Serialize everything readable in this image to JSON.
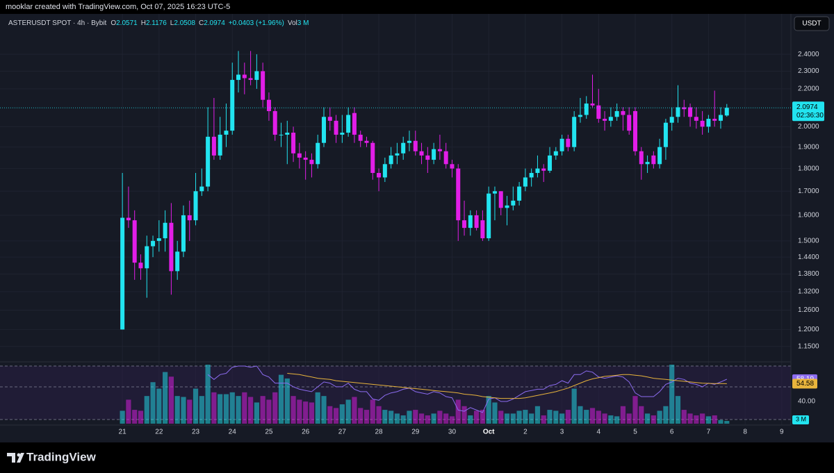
{
  "chart_data": {
    "type": "candlestick",
    "credit": "mooklar created with TradingView.com, Oct 07, 2025 16:23 UTC-5",
    "title": "ASTERUSDT SPOT · 4h · Bybit",
    "legend": {
      "open_prefix": "O",
      "high_prefix": "H",
      "low_prefix": "L",
      "close_prefix": "C",
      "change": "+0.0403 (+1.96%)",
      "volume_prefix": "Vol"
    },
    "currency": "USDT",
    "brand": "TradingView",
    "countdown": "02:36:30",
    "log_scale": true,
    "grid": true,
    "up_color": "#22e4f0",
    "down_color": "#e21ee8",
    "xlim": [
      -20.05,
      109.5
    ],
    "xticks": [
      {
        "value": 0,
        "label": "21"
      },
      {
        "value": 6,
        "label": "22"
      },
      {
        "value": 12,
        "label": "23"
      },
      {
        "value": 18,
        "label": "24"
      },
      {
        "value": 24,
        "label": "25"
      },
      {
        "value": 30,
        "label": "26"
      },
      {
        "value": 36,
        "label": "27"
      },
      {
        "value": 42,
        "label": "28"
      },
      {
        "value": 48,
        "label": "29"
      },
      {
        "value": 54,
        "label": "30"
      },
      {
        "value": 60,
        "label": "Oct"
      },
      {
        "value": 66,
        "label": "2"
      },
      {
        "value": 72,
        "label": "3"
      },
      {
        "value": 78,
        "label": "4"
      },
      {
        "value": 84,
        "label": "5"
      },
      {
        "value": 90,
        "label": "6"
      },
      {
        "value": 96,
        "label": "7"
      },
      {
        "value": 102,
        "label": "8"
      },
      {
        "value": 108,
        "label": "9"
      }
    ],
    "ylim": [
      1.108,
      2.53
    ],
    "yticks": [
      {
        "value": 2.4,
        "label": "2.4000"
      },
      {
        "value": 2.3,
        "label": "2.3000"
      },
      {
        "value": 2.2,
        "label": "2.2000"
      },
      {
        "value": 2.0,
        "label": "2.0000"
      },
      {
        "value": 1.9,
        "label": "1.9000"
      },
      {
        "value": 1.8,
        "label": "1.8000"
      },
      {
        "value": 1.7,
        "label": "1.7000"
      },
      {
        "value": 1.6,
        "label": "1.6000"
      },
      {
        "value": 1.5,
        "label": "1.5000"
      },
      {
        "value": 1.44,
        "label": "1.4400"
      },
      {
        "value": 1.38,
        "label": "1.3800"
      },
      {
        "value": 1.32,
        "label": "1.3200"
      },
      {
        "value": 1.26,
        "label": "1.2600"
      },
      {
        "value": 1.2,
        "label": "1.2000"
      },
      {
        "value": 1.15,
        "label": "1.1500"
      }
    ],
    "open": [
      1.2,
      1.59,
      1.58,
      1.42,
      1.4,
      1.48,
      1.5,
      1.51,
      1.57,
      1.39,
      1.46,
      1.6,
      1.58,
      1.7,
      1.72,
      1.95,
      1.86,
      1.96,
      1.98,
      2.25,
      2.28,
      2.26,
      2.25,
      2.3,
      2.14,
      2.08,
      1.96,
      1.96,
      1.97,
      1.87,
      1.85,
      1.84,
      1.82,
      1.92,
      2.05,
      2.03,
      1.96,
      1.97,
      2.07,
      1.96,
      1.93,
      1.92,
      1.78,
      1.76,
      1.82,
      1.86,
      1.87,
      1.92,
      1.93,
      1.88,
      1.86,
      1.84,
      1.89,
      1.88,
      1.82,
      1.8,
      1.58,
      1.55,
      1.6,
      1.58,
      1.51,
      1.69,
      1.7,
      1.63,
      1.64,
      1.66,
      1.72,
      1.76,
      1.78,
      1.8,
      1.79,
      1.86,
      1.88,
      1.94,
      1.9,
      2.05,
      2.06,
      2.12,
      2.11,
      2.04,
      2.03,
      2.05,
      2.08,
      2.06,
      2.08,
      1.88,
      1.82,
      1.86,
      1.82,
      1.9,
      2.02,
      2.05,
      2.1,
      2.1,
      2.05,
      2.03,
      2.0,
      2.04,
      2.03,
      2.0571
    ],
    "high": [
      1.78,
      1.72,
      1.62,
      1.45,
      1.52,
      1.52,
      1.58,
      1.62,
      1.65,
      1.5,
      1.64,
      1.66,
      1.78,
      1.8,
      2.1,
      2.15,
      2.05,
      2.12,
      2.35,
      2.42,
      2.35,
      2.42,
      2.4,
      2.35,
      2.18,
      2.1,
      2.02,
      2.03,
      2.0,
      1.92,
      1.88,
      1.87,
      1.96,
      2.1,
      2.1,
      2.06,
      2.06,
      2.1,
      2.1,
      1.98,
      1.95,
      1.93,
      1.8,
      1.85,
      1.9,
      1.92,
      1.95,
      1.98,
      1.98,
      1.92,
      1.9,
      1.92,
      1.96,
      1.92,
      1.84,
      1.82,
      1.66,
      1.62,
      1.62,
      1.62,
      1.72,
      1.72,
      1.7,
      1.68,
      1.72,
      1.74,
      1.8,
      1.8,
      1.86,
      1.82,
      1.9,
      1.9,
      1.96,
      1.96,
      2.08,
      2.15,
      2.16,
      2.28,
      2.2,
      2.08,
      2.1,
      2.12,
      2.1,
      2.1,
      2.1,
      1.9,
      1.86,
      1.88,
      1.94,
      2.04,
      2.1,
      2.22,
      2.14,
      2.12,
      2.1,
      2.08,
      2.06,
      2.19,
      2.1,
      2.1176
    ],
    "low": [
      1.2,
      1.55,
      1.36,
      1.36,
      1.3,
      1.44,
      1.46,
      1.46,
      1.31,
      1.36,
      1.44,
      1.5,
      1.56,
      1.68,
      1.7,
      1.84,
      1.84,
      1.9,
      1.96,
      2.18,
      2.17,
      2.22,
      2.2,
      2.1,
      2.03,
      1.93,
      1.9,
      1.82,
      1.83,
      1.8,
      1.75,
      1.76,
      1.8,
      1.9,
      1.98,
      1.92,
      1.92,
      1.95,
      1.92,
      1.9,
      1.9,
      1.75,
      1.7,
      1.74,
      1.8,
      1.82,
      1.84,
      1.88,
      1.86,
      1.82,
      1.78,
      1.82,
      1.84,
      1.8,
      1.76,
      1.5,
      1.52,
      1.52,
      1.54,
      1.5,
      1.5,
      1.58,
      1.6,
      1.56,
      1.62,
      1.64,
      1.7,
      1.72,
      1.76,
      1.74,
      1.78,
      1.84,
      1.86,
      1.88,
      1.88,
      2.02,
      2.04,
      2.1,
      2.02,
      1.98,
      2.0,
      2.03,
      1.98,
      1.96,
      1.86,
      1.75,
      1.78,
      1.8,
      1.8,
      1.84,
      1.98,
      2.02,
      2.05,
      2.0,
      1.99,
      1.96,
      1.97,
      2.0,
      1.99,
      2.0508
    ],
    "close": [
      1.59,
      1.58,
      1.42,
      1.4,
      1.48,
      1.5,
      1.51,
      1.57,
      1.39,
      1.46,
      1.6,
      1.58,
      1.7,
      1.72,
      1.95,
      1.86,
      1.96,
      1.98,
      2.25,
      2.28,
      2.26,
      2.25,
      2.3,
      2.14,
      2.08,
      1.96,
      1.96,
      1.97,
      1.87,
      1.85,
      1.84,
      1.82,
      1.92,
      2.05,
      2.03,
      1.96,
      1.97,
      2.06,
      1.96,
      1.93,
      1.92,
      1.78,
      1.76,
      1.82,
      1.86,
      1.87,
      1.92,
      1.93,
      1.88,
      1.86,
      1.84,
      1.89,
      1.88,
      1.82,
      1.8,
      1.58,
      1.55,
      1.6,
      1.55,
      1.51,
      1.69,
      1.7,
      1.63,
      1.64,
      1.66,
      1.72,
      1.76,
      1.78,
      1.8,
      1.79,
      1.86,
      1.88,
      1.94,
      1.9,
      2.05,
      2.06,
      2.12,
      2.11,
      2.04,
      2.03,
      2.05,
      2.08,
      2.06,
      1.98,
      1.88,
      1.82,
      1.83,
      1.82,
      1.9,
      2.02,
      2.05,
      2.1,
      2.09,
      2.05,
      2.03,
      2.0,
      2.04,
      2.03,
      2.06,
      2.0974
    ],
    "volume": [
      14,
      26,
      15,
      14,
      30,
      45,
      38,
      56,
      51,
      30,
      29,
      26,
      38,
      30,
      64,
      34,
      32,
      32,
      34,
      30,
      34,
      29,
      23,
      30,
      26,
      34,
      53,
      49,
      30,
      26,
      24,
      23,
      34,
      30,
      19,
      17,
      21,
      26,
      29,
      17,
      15,
      26,
      19,
      15,
      14,
      11,
      9,
      14,
      15,
      11,
      9,
      11,
      14,
      11,
      8,
      26,
      19,
      9,
      14,
      15,
      30,
      23,
      14,
      11,
      11,
      14,
      15,
      11,
      19,
      9,
      15,
      14,
      11,
      15,
      38,
      19,
      15,
      17,
      14,
      11,
      9,
      8,
      19,
      11,
      30,
      19,
      11,
      9,
      14,
      19,
      64,
      30,
      15,
      11,
      9,
      11,
      8,
      9,
      4,
      3
    ],
    "volume_label": "3 M",
    "volume_lim": [
      0,
      64
    ],
    "rsi": [
      null,
      null,
      null,
      null,
      null,
      null,
      null,
      null,
      null,
      null,
      null,
      null,
      null,
      null,
      62,
      58,
      62,
      63,
      68,
      69,
      69,
      68,
      69,
      62,
      60,
      55,
      55,
      55,
      52,
      50,
      49,
      48,
      52,
      56,
      55,
      52,
      52,
      55,
      50,
      48,
      48,
      42,
      41,
      45,
      47,
      48,
      50,
      51,
      48,
      47,
      46,
      48,
      47,
      44,
      43,
      33,
      32,
      35,
      33,
      31,
      42,
      43,
      40,
      40,
      42,
      45,
      48,
      49,
      50,
      50,
      53,
      54,
      57,
      55,
      62,
      62,
      65,
      64,
      60,
      59,
      60,
      61,
      60,
      56,
      47,
      44,
      44,
      44,
      48,
      54,
      56,
      59,
      58,
      55,
      54,
      52,
      55,
      54,
      56,
      58.19
    ],
    "rsi_ma": [
      null,
      null,
      null,
      null,
      null,
      null,
      null,
      null,
      null,
      null,
      null,
      null,
      null,
      null,
      null,
      null,
      null,
      null,
      null,
      null,
      null,
      null,
      null,
      null,
      null,
      null,
      null,
      63,
      62.5,
      62,
      61,
      60,
      59,
      58.5,
      58,
      57,
      56.5,
      56,
      55.5,
      55,
      54.5,
      54,
      53.5,
      53,
      52.5,
      52,
      51.5,
      51,
      50.5,
      50,
      49.5,
      49,
      48.5,
      48,
      47.5,
      47,
      46,
      45.5,
      45,
      44,
      43.5,
      43,
      42.5,
      42.5,
      42.5,
      42.5,
      43,
      44,
      45,
      46,
      47,
      48,
      49.5,
      51,
      53,
      55,
      57,
      58.5,
      59.5,
      60.5,
      61,
      61.5,
      62,
      62,
      61.5,
      61,
      60,
      59,
      58.5,
      58,
      57.5,
      57,
      56.5,
      56,
      55.5,
      55,
      54.8,
      54.6,
      54.6,
      54.58
    ],
    "rsi_color": "#8c6cf0",
    "rsi_ma_color": "#e8b43c",
    "rsi_lim": [
      20.7,
      72.4
    ],
    "rsi_ticks": [
      {
        "value": 40,
        "label": "40.00"
      }
    ]
  }
}
